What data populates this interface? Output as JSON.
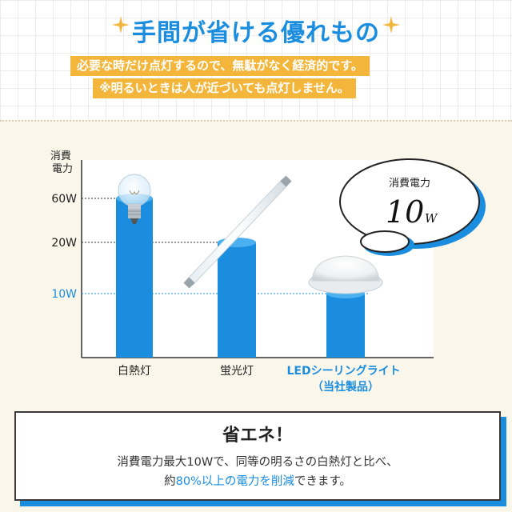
{
  "header": {
    "headline": "手間が省ける優れもの",
    "sub_line1": "必要な時だけ点灯するので、無駄がなく経済的です。",
    "sub_line2": "※明るいときは人が近づいても点灯しません。"
  },
  "chart_data": {
    "type": "bar",
    "ylabel": "消費\n電力",
    "categories": [
      "白熱灯",
      "蛍光灯",
      "LEDシーリングライト\n（当社製品）"
    ],
    "values": [
      60,
      20,
      10
    ],
    "yticks": [
      "60W",
      "20W",
      "10W"
    ],
    "bar_color": "#1b8ddf",
    "scale": "non-linear (illustrative)",
    "callout": {
      "label": "消費電力",
      "value": "10",
      "unit": "W"
    }
  },
  "summary": {
    "title": "省エネ！",
    "line1": "消費電力最大10Wで、同等の明るさの白熱灯と比べ、",
    "line2_prefix": "約",
    "line2_highlight": "80%以上の電力を削減",
    "line2_suffix": "できます。"
  },
  "colors": {
    "accent": "#1b8ddf",
    "banner": "#f3b53a",
    "background": "#fbf6ea"
  }
}
